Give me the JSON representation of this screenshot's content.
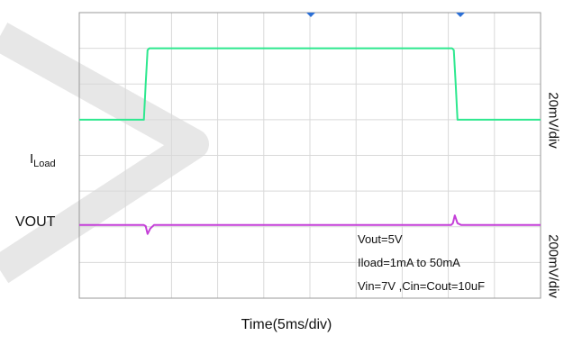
{
  "chart_data": {
    "type": "line",
    "xlabel": "Time(5ms/div)",
    "x_per_div": 5,
    "x_unit": "ms",
    "xlim": [
      0,
      50
    ],
    "ylim": [
      0,
      8
    ],
    "series": [
      {
        "name": "ILoad",
        "label_main": "I",
        "label_sub": "Load",
        "color": "#2ee88f",
        "scale": "20mV/div",
        "x": [
          0,
          7.0,
          7.2,
          7.4,
          7.6,
          40.4,
          40.6,
          40.8,
          41.0,
          50
        ],
        "y": [
          5.0,
          5.0,
          6.0,
          6.95,
          7.0,
          7.0,
          6.95,
          6.0,
          5.0,
          5.0
        ]
      },
      {
        "name": "VOUT",
        "label_main": "VOUT",
        "color": "#c43fd8",
        "scale": "200mV/div",
        "x": [
          0,
          7.0,
          7.2,
          7.4,
          7.7,
          8.1,
          40.3,
          40.5,
          40.7,
          41.0,
          41.4,
          50
        ],
        "y": [
          2.05,
          2.05,
          2.02,
          1.8,
          1.95,
          2.05,
          2.05,
          2.1,
          2.32,
          2.1,
          2.05,
          2.05
        ]
      }
    ],
    "annotations": [
      "Vout=5V",
      "Iload=1mA to 50mA",
      "Vin=7V ,Cin=Cout=10uF"
    ]
  },
  "colors": {
    "grid": "#d9d9d9",
    "frame": "#9a9a9a",
    "marker": "#2a6fd6",
    "watermark": "#e7e7e7"
  }
}
